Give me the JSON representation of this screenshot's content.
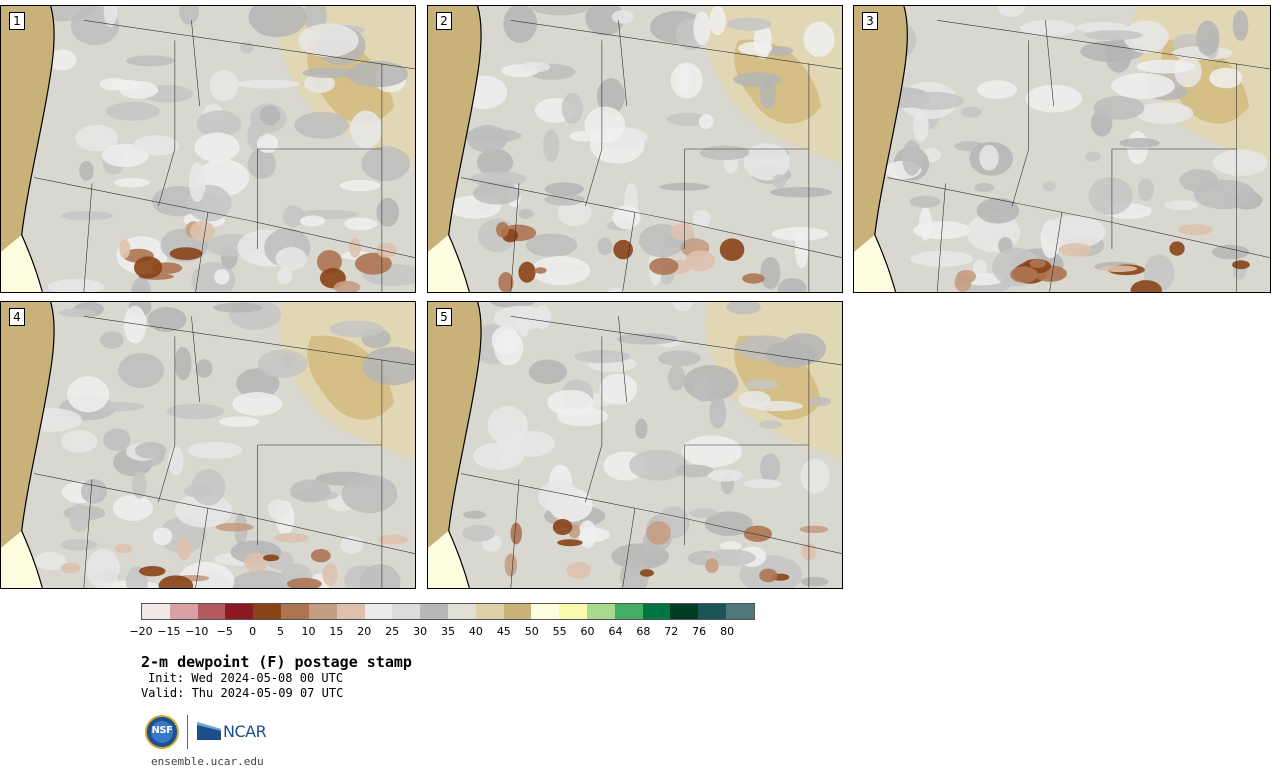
{
  "panels": [
    {
      "label": "1",
      "seed": 11
    },
    {
      "label": "2",
      "seed": 23
    },
    {
      "label": "3",
      "seed": 37
    },
    {
      "label": "4",
      "seed": 41
    },
    {
      "label": "5",
      "seed": 59
    }
  ],
  "colorbar": {
    "colors": [
      "#f3e8e8",
      "#d9a1a3",
      "#b25a5e",
      "#8b1a23",
      "#8a4316",
      "#ad7452",
      "#c59d83",
      "#dec1ad",
      "#ececec",
      "#dcdcdc",
      "#b8b8b8",
      "#e1e0d5",
      "#dfd1a7",
      "#c9b27a",
      "#fffde0",
      "#fbf9ad",
      "#a9d98f",
      "#45ad63",
      "#007645",
      "#003c23",
      "#1b5558",
      "#4f787a"
    ],
    "ticks": [
      "−20",
      "−15",
      "−10",
      "−5",
      "0",
      "5",
      "10",
      "15",
      "20",
      "25",
      "30",
      "35",
      "40",
      "45",
      "50",
      "55",
      "60",
      "64",
      "68",
      "72",
      "76",
      "80"
    ]
  },
  "title": "2-m dewpoint (F) postage stamp",
  "init": "Init: Wed 2024-05-08 00 UTC",
  "valid": "Valid: Thu 2024-05-09 07 UTC",
  "logos": {
    "nsf": "NSF",
    "ncar": "NCAR"
  },
  "site": "ensemble.ucar.edu"
}
